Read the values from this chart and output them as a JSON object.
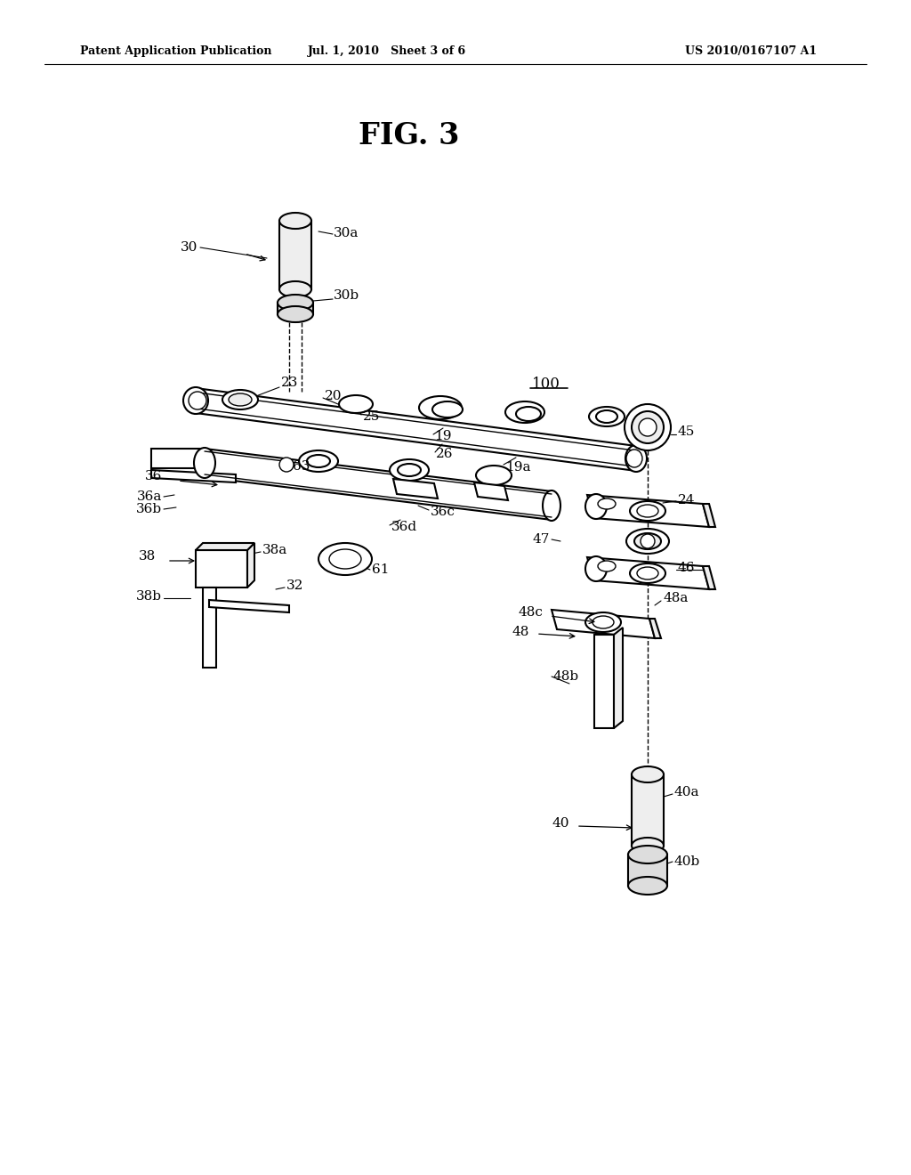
{
  "bg_color": "#ffffff",
  "header_left": "Patent Application Publication",
  "header_mid": "Jul. 1, 2010   Sheet 3 of 6",
  "header_right": "US 2010/0167107 A1",
  "fig_title": "FIG. 3",
  "lw_main": 1.5,
  "lw_thin": 1.0,
  "lw_hair": 0.8,
  "fc_white": "#ffffff",
  "fc_light": "#eeeeee",
  "fc_mid": "#dddddd",
  "ec_black": "#000000"
}
